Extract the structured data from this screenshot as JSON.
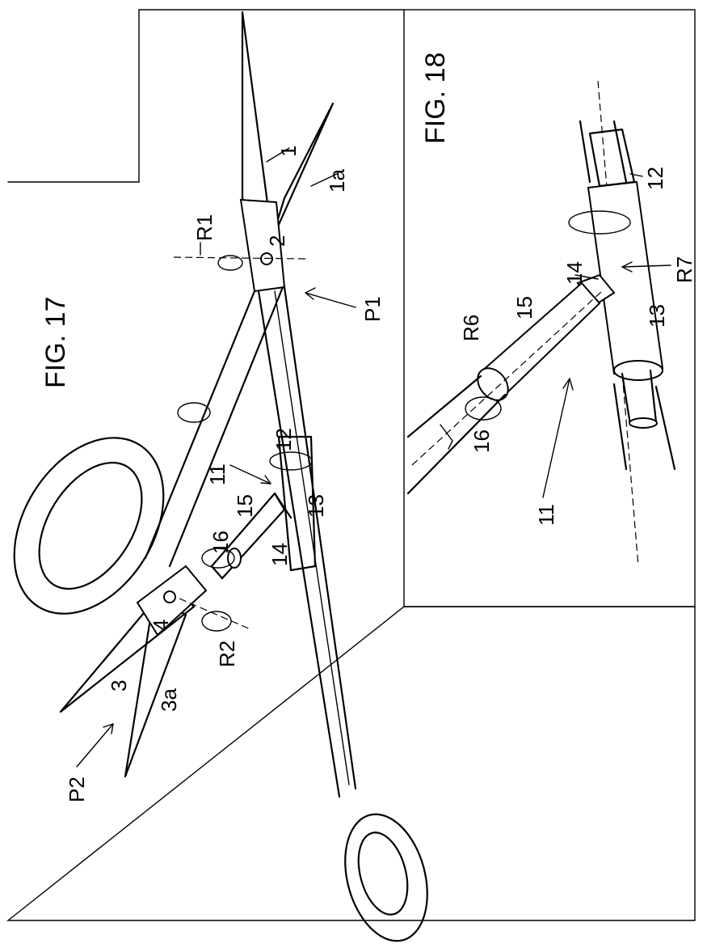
{
  "figures": {
    "fig17": {
      "title": "FIG. 17",
      "labels": {
        "l1": "1",
        "l1a": "1a",
        "l2": "2",
        "r1": "R1",
        "p1": "P1",
        "l3": "3",
        "l3a": "3a",
        "l4": "4",
        "r2": "R2",
        "p2": "P2",
        "l11": "11",
        "l12": "12",
        "l13": "13",
        "l14": "14",
        "l15": "15",
        "l16": "16"
      }
    },
    "fig18": {
      "title": "FIG. 18",
      "labels": {
        "l11": "11",
        "l12": "12",
        "l13": "13",
        "l14": "14",
        "l15": "15",
        "l16": "16",
        "r6": "R6",
        "r7": "R7"
      }
    }
  }
}
